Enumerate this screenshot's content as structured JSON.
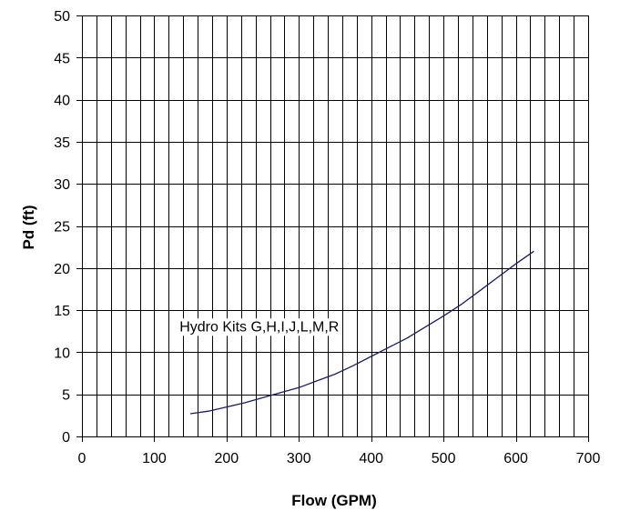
{
  "chart_data": {
    "type": "line",
    "xlabel": "Flow (GPM)",
    "ylabel": "Pd (ft)",
    "xlim": [
      0,
      700
    ],
    "ylim": [
      0,
      50
    ],
    "x_ticks": [
      0,
      100,
      200,
      300,
      400,
      500,
      600,
      700
    ],
    "y_ticks": [
      0,
      5,
      10,
      15,
      20,
      25,
      30,
      35,
      40,
      45,
      50
    ],
    "x_minor_step": 20,
    "y_minor_step": 5,
    "grid": true,
    "legend": "none",
    "annotations": [
      {
        "text": "Hydro Kits G,H,I,J,L,M,R",
        "x": 135,
        "y": 12.5
      }
    ],
    "series": [
      {
        "color": "#1a1a6e",
        "x": [
          150,
          175,
          200,
          225,
          250,
          275,
          300,
          325,
          350,
          375,
          400,
          425,
          450,
          475,
          500,
          525,
          550,
          575,
          600,
          625
        ],
        "y": [
          2.7,
          3.0,
          3.5,
          4.0,
          4.6,
          5.2,
          5.8,
          6.6,
          7.4,
          8.4,
          9.5,
          10.6,
          11.7,
          13.0,
          14.3,
          15.7,
          17.3,
          18.9,
          20.5,
          22.0
        ]
      }
    ]
  }
}
